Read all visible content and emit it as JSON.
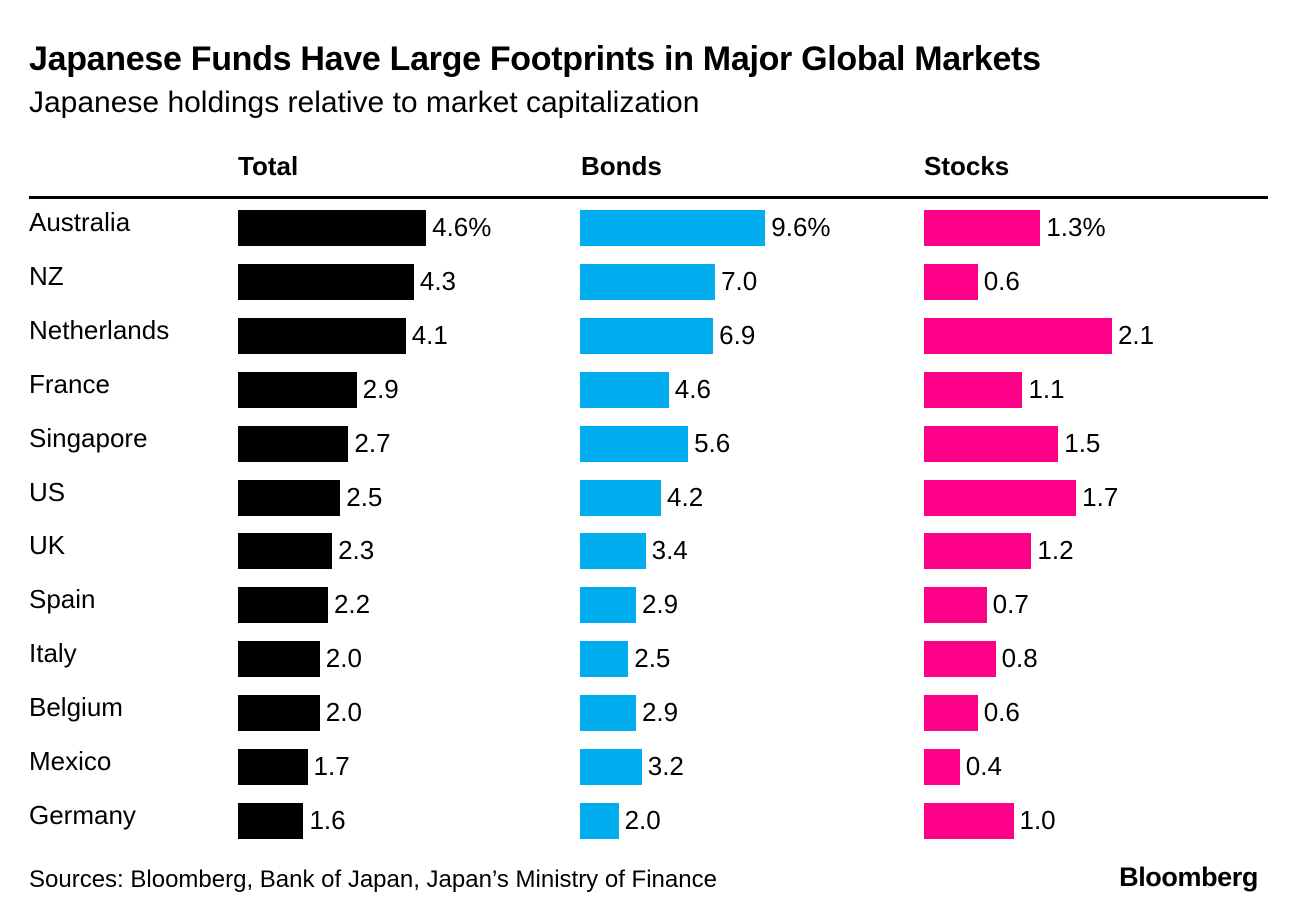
{
  "title": "Japanese Funds Have Large Footprints in Major Global Markets",
  "subtitle": "Japanese holdings relative to market capitalization",
  "source": "Sources: Bloomberg, Bank of Japan, Japan’s Ministry of Finance",
  "brand": "Bloomberg",
  "chart_data": {
    "type": "bar",
    "orientation": "horizontal",
    "panels": "small-multiples",
    "categories": [
      "Australia",
      "NZ",
      "Netherlands",
      "France",
      "Singapore",
      "US",
      "UK",
      "Spain",
      "Italy",
      "Belgium",
      "Mexico",
      "Germany"
    ],
    "series": [
      {
        "name": "Total",
        "color": "#000000",
        "values": [
          4.6,
          4.3,
          4.1,
          2.9,
          2.7,
          2.5,
          2.3,
          2.2,
          2.0,
          2.0,
          1.7,
          1.6
        ],
        "labels": [
          "4.6%",
          "4.3",
          "4.1",
          "2.9",
          "2.7",
          "2.5",
          "2.3",
          "2.2",
          "2.0",
          "2.0",
          "1.7",
          "1.6"
        ]
      },
      {
        "name": "Bonds",
        "color": "#00adef",
        "values": [
          9.6,
          7.0,
          6.9,
          4.6,
          5.6,
          4.2,
          3.4,
          2.9,
          2.5,
          2.9,
          3.2,
          2.0
        ],
        "labels": [
          "9.6%",
          "7.0",
          "6.9",
          "4.6",
          "5.6",
          "4.2",
          "3.4",
          "2.9",
          "2.5",
          "2.9",
          "3.2",
          "2.0"
        ]
      },
      {
        "name": "Stocks",
        "color": "#ff0089",
        "values": [
          1.3,
          0.6,
          2.1,
          1.1,
          1.5,
          1.7,
          1.2,
          0.7,
          0.8,
          0.6,
          0.4,
          1.0
        ],
        "labels": [
          "1.3%",
          "0.6",
          "2.1",
          "1.1",
          "1.5",
          "1.7",
          "1.2",
          "0.7",
          "0.8",
          "0.6",
          "0.4",
          "1.0"
        ]
      }
    ],
    "grid": false,
    "legend": "none"
  }
}
